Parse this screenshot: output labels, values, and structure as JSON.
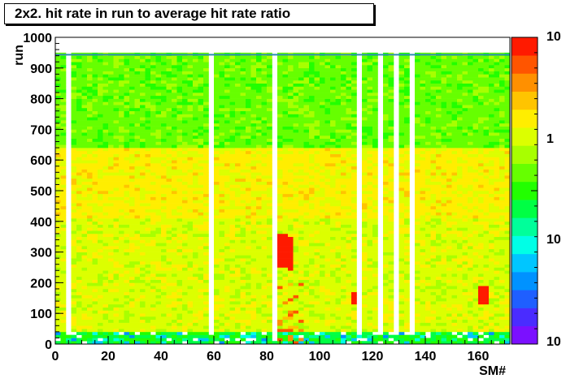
{
  "title": "2x2. hit rate in run to average hit rate ratio",
  "chart_data": {
    "type": "heatmap",
    "title": "2x2. hit rate in run to average hit rate ratio",
    "xlabel": "SM#",
    "ylabel": "run",
    "xlim": [
      0,
      172
    ],
    "ylim": [
      0,
      1000
    ],
    "x_ticks": [
      "0",
      "20",
      "40",
      "60",
      "80",
      "100",
      "120",
      "140",
      "160"
    ],
    "y_ticks": [
      "0",
      "100",
      "200",
      "300",
      "400",
      "500",
      "600",
      "700",
      "800",
      "900",
      "1000"
    ],
    "color_scale": {
      "log": true,
      "range": [
        0.1,
        10
      ],
      "tick_labels": [
        "10",
        "1",
        "10",
        "10"
      ],
      "palette": [
        "#7b10ff",
        "#4a2cff",
        "#1f5fff",
        "#0092ff",
        "#00c6ff",
        "#00ffe6",
        "#00ff9a",
        "#00ff44",
        "#22ff00",
        "#66ff00",
        "#a8ff00",
        "#dcff00",
        "#ffee00",
        "#ffc400",
        "#ff9000",
        "#ff5500",
        "#ff1a00"
      ]
    },
    "bands": [
      {
        "run_from": 0,
        "run_to": 40,
        "level": "mixed, many low/empty cells"
      },
      {
        "run_from": 40,
        "run_to": 410,
        "level": "~1.2 (yellow-green)"
      },
      {
        "run_from": 410,
        "run_to": 640,
        "level": "~1.4 (yellow)"
      },
      {
        "run_from": 640,
        "run_to": 945,
        "level": "~0.9 (green)"
      }
    ],
    "empty_columns_sm": [
      5,
      58,
      82,
      114,
      122,
      129,
      135
    ],
    "hot_spots": [
      {
        "sm": 85,
        "run_from": 250,
        "run_to": 360,
        "level": "red"
      },
      {
        "sm": 88,
        "run_from": 240,
        "run_to": 350,
        "level": "red"
      },
      {
        "sm": 113,
        "run_from": 130,
        "run_to": 170,
        "level": "red"
      },
      {
        "sm": 161,
        "run_from": 130,
        "run_to": 190,
        "level": "red"
      }
    ]
  }
}
